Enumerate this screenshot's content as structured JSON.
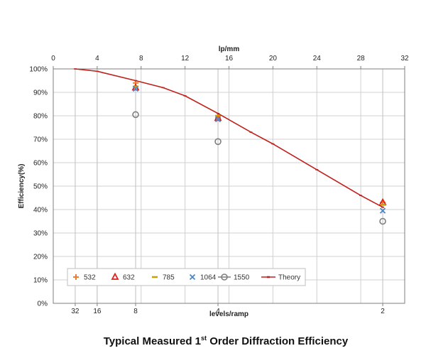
{
  "chart_data": {
    "type": "scatter",
    "title": "Typical Measured 1st Order Diffraction Efficiency",
    "title_parts": {
      "before": "Typical Measured 1",
      "sup": "st",
      "after": " Order Diffraction Efficiency"
    },
    "ylabel": "Efficiency(%)",
    "xlabel_top": "lp/mm",
    "xlabel_bottom": "levels/ramp",
    "xlim": [
      0,
      32
    ],
    "ylim": [
      0,
      100
    ],
    "x_ticks_top": [
      "0",
      "4",
      "8",
      "12",
      "16",
      "20",
      "24",
      "28",
      "32"
    ],
    "y_ticks": [
      "0%",
      "10%",
      "20%",
      "30%",
      "40%",
      "50%",
      "60%",
      "70%",
      "80%",
      "90%",
      "100%"
    ],
    "x_ticks_bottom": [
      {
        "label": "32",
        "lpmm": 2
      },
      {
        "label": "16",
        "lpmm": 4
      },
      {
        "label": "8",
        "lpmm": 7.5
      },
      {
        "label": "4",
        "lpmm": 15
      },
      {
        "label": "2",
        "lpmm": 30
      }
    ],
    "grid": true,
    "legend_position": "bottom-left",
    "series": [
      {
        "name": "532",
        "marker": "plus",
        "color": "#ED7D31",
        "points": [
          [
            7.5,
            94
          ],
          [
            15,
            79
          ],
          [
            30,
            43
          ]
        ]
      },
      {
        "name": "632",
        "marker": "triangle",
        "color": "#E0201B",
        "points": [
          [
            7.5,
            92
          ],
          [
            15,
            79
          ],
          [
            30,
            43
          ]
        ]
      },
      {
        "name": "785",
        "marker": "dash",
        "color": "#C9A000",
        "points": [
          [
            7.5,
            92.5
          ],
          [
            15,
            80
          ],
          [
            30,
            42
          ]
        ]
      },
      {
        "name": "1064",
        "marker": "x",
        "color": "#4A86C8",
        "points": [
          [
            7.5,
            91.5
          ],
          [
            15,
            78.5
          ],
          [
            30,
            39.5
          ]
        ]
      },
      {
        "name": "1550",
        "marker": "circle",
        "color": "#7F7F7F",
        "points": [
          [
            7.5,
            80.5
          ],
          [
            15,
            69
          ],
          [
            30,
            35
          ]
        ]
      },
      {
        "name": "Theory",
        "marker": "line",
        "color": "#C0201B",
        "points": [
          [
            2,
            100
          ],
          [
            4,
            99
          ],
          [
            7.5,
            95
          ],
          [
            10,
            92
          ],
          [
            12,
            88.5
          ],
          [
            15,
            81
          ],
          [
            18,
            73
          ],
          [
            20,
            68
          ],
          [
            24,
            57
          ],
          [
            28,
            46
          ],
          [
            30,
            41
          ]
        ]
      }
    ]
  }
}
